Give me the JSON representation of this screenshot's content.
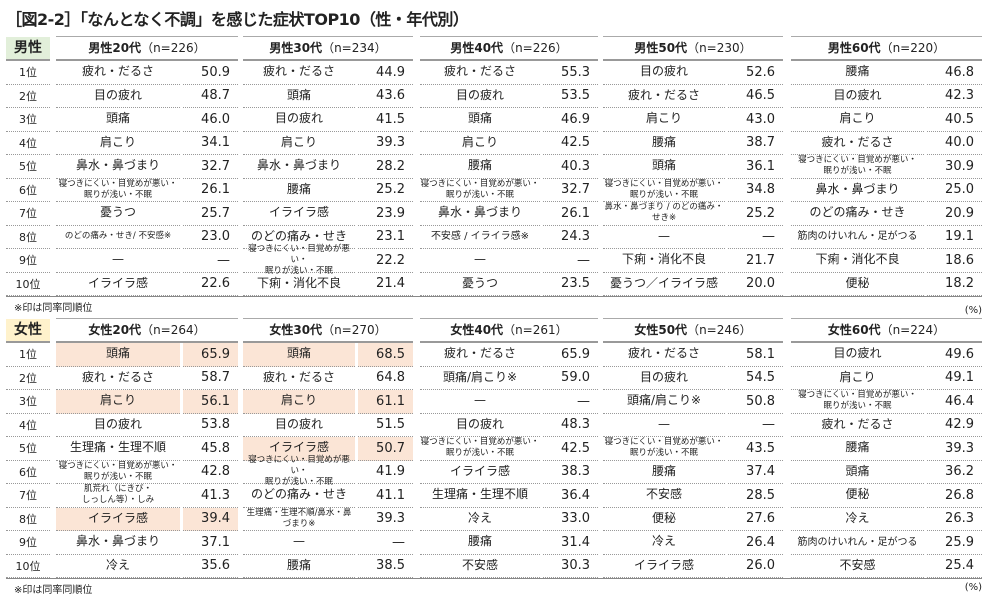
{
  "title": "［図2-2］「なんとなく不調」を感じた症状TOP10（性・年代別）",
  "ranks": [
    "1位",
    "2位",
    "3位",
    "4位",
    "5位",
    "6位",
    "7位",
    "8位",
    "9位",
    "10位"
  ],
  "note": "※印は同率同順位",
  "unit": "(%)",
  "colors": {
    "male_label_bg": "#e2efda",
    "female_label_bg": "#fff2cc",
    "highlight": "#fbe5d6"
  },
  "sections": [
    {
      "label": "男性",
      "groups": [
        {
          "title": "男性20代",
          "n": "（n=226）",
          "rows": [
            {
              "name": "疲れ・だるさ",
              "value": "50.9"
            },
            {
              "name": "目の疲れ",
              "value": "48.7"
            },
            {
              "name": "頭痛",
              "value": "46.0"
            },
            {
              "name": "肩こり",
              "value": "34.1"
            },
            {
              "name": "鼻水・鼻づまり",
              "value": "32.7"
            },
            {
              "name": "寝つきにくい・目覚めが悪い・\n眠りが浅い・不眠",
              "value": "26.1"
            },
            {
              "name": "憂うつ",
              "value": "25.7"
            },
            {
              "name": "のどの痛み・せき/ 不安感※",
              "value": "23.0"
            },
            {
              "name": "—",
              "value": "—"
            },
            {
              "name": "イライラ感",
              "value": "22.6"
            }
          ]
        },
        {
          "title": "男性30代",
          "n": "（n=234）",
          "rows": [
            {
              "name": "疲れ・だるさ",
              "value": "44.9"
            },
            {
              "name": "頭痛",
              "value": "43.6"
            },
            {
              "name": "目の疲れ",
              "value": "41.5"
            },
            {
              "name": "肩こり",
              "value": "39.3"
            },
            {
              "name": "鼻水・鼻づまり",
              "value": "28.2"
            },
            {
              "name": "腰痛",
              "value": "25.2"
            },
            {
              "name": "イライラ感",
              "value": "23.9"
            },
            {
              "name": "のどの痛み・せき",
              "value": "23.1"
            },
            {
              "name": "寝つきにくい・目覚めが悪い・\n眠りが浅い・不眠",
              "value": "22.2"
            },
            {
              "name": "下痢・消化不良",
              "value": "21.4"
            }
          ]
        },
        {
          "title": "男性40代",
          "n": "（n=226）",
          "rows": [
            {
              "name": "疲れ・だるさ",
              "value": "55.3"
            },
            {
              "name": "目の疲れ",
              "value": "53.5"
            },
            {
              "name": "頭痛",
              "value": "46.9"
            },
            {
              "name": "肩こり",
              "value": "42.5"
            },
            {
              "name": "腰痛",
              "value": "40.3"
            },
            {
              "name": "寝つきにくい・目覚めが悪い・\n眠りが浅い・不眠",
              "value": "32.7"
            },
            {
              "name": "鼻水・鼻づまり",
              "value": "26.1"
            },
            {
              "name": "不安感 / イライラ感※",
              "value": "24.3"
            },
            {
              "name": "—",
              "value": "—"
            },
            {
              "name": "憂うつ",
              "value": "23.5"
            }
          ]
        },
        {
          "title": "男性50代",
          "n": "（n=230）",
          "rows": [
            {
              "name": "目の疲れ",
              "value": "52.6"
            },
            {
              "name": "疲れ・だるさ",
              "value": "46.5"
            },
            {
              "name": "肩こり",
              "value": "43.0"
            },
            {
              "name": "腰痛",
              "value": "38.7"
            },
            {
              "name": "頭痛",
              "value": "36.1"
            },
            {
              "name": "寝つきにくい・目覚めが悪い・\n眠りが浅い・不眠",
              "value": "34.8"
            },
            {
              "name": "鼻水・鼻づまり / のどの痛み・せき※",
              "value": "25.2"
            },
            {
              "name": "—",
              "value": "—"
            },
            {
              "name": "下痢・消化不良",
              "value": "21.7"
            },
            {
              "name": "憂うつ／イライラ感",
              "value": "20.0"
            }
          ]
        },
        {
          "title": "男性60代",
          "n": "（n=220）",
          "rows": [
            {
              "name": "腰痛",
              "value": "46.8"
            },
            {
              "name": "目の疲れ",
              "value": "42.3"
            },
            {
              "name": "肩こり",
              "value": "40.5"
            },
            {
              "name": "疲れ・だるさ",
              "value": "40.0"
            },
            {
              "name": "寝つきにくい・目覚めが悪い・\n眠りが浅い・不眠",
              "value": "30.9"
            },
            {
              "name": "鼻水・鼻づまり",
              "value": "25.0"
            },
            {
              "name": "のどの痛み・せき",
              "value": "20.9"
            },
            {
              "name": "筋肉のけいれん・足がつる",
              "value": "19.1"
            },
            {
              "name": "下痢・消化不良",
              "value": "18.6"
            },
            {
              "name": "便秘",
              "value": "18.2"
            }
          ]
        }
      ]
    },
    {
      "label": "女性",
      "groups": [
        {
          "title": "女性20代",
          "n": "（n=264）",
          "rows": [
            {
              "name": "頭痛",
              "value": "65.9",
              "highlight": true
            },
            {
              "name": "疲れ・だるさ",
              "value": "58.7"
            },
            {
              "name": "肩こり",
              "value": "56.1",
              "highlight": true
            },
            {
              "name": "目の疲れ",
              "value": "53.8"
            },
            {
              "name": "生理痛・生理不順",
              "value": "45.8"
            },
            {
              "name": "寝つきにくい・目覚めが悪い・\n眠りが浅い・不眠",
              "value": "42.8"
            },
            {
              "name": "肌荒れ（にきび・\nしっしん等）・しみ",
              "value": "41.3"
            },
            {
              "name": "イライラ感",
              "value": "39.4",
              "highlight": true
            },
            {
              "name": "鼻水・鼻づまり",
              "value": "37.1"
            },
            {
              "name": "冷え",
              "value": "35.6"
            }
          ]
        },
        {
          "title": "女性30代",
          "n": "（n=270）",
          "rows": [
            {
              "name": "頭痛",
              "value": "68.5",
              "highlight": true
            },
            {
              "name": "疲れ・だるさ",
              "value": "64.8"
            },
            {
              "name": "肩こり",
              "value": "61.1",
              "highlight": true
            },
            {
              "name": "目の疲れ",
              "value": "51.5"
            },
            {
              "name": "イライラ感",
              "value": "50.7",
              "highlight": true
            },
            {
              "name": "寝つきにくい・目覚めが悪い・\n眠りが浅い・不眠",
              "value": "41.9"
            },
            {
              "name": "のどの痛み・せき",
              "value": "41.1"
            },
            {
              "name": "生理痛・生理不順/鼻水・鼻づまり※",
              "value": "39.3"
            },
            {
              "name": "—",
              "value": "—"
            },
            {
              "name": "腰痛",
              "value": "38.5"
            }
          ]
        },
        {
          "title": "女性40代",
          "n": "（n=261）",
          "rows": [
            {
              "name": "疲れ・だるさ",
              "value": "65.9"
            },
            {
              "name": "頭痛/肩こり※",
              "value": "59.0"
            },
            {
              "name": "—",
              "value": "—"
            },
            {
              "name": "目の疲れ",
              "value": "48.3"
            },
            {
              "name": "寝つきにくい・目覚めが悪い・\n眠りが浅い・不眠",
              "value": "42.5"
            },
            {
              "name": "イライラ感",
              "value": "38.3"
            },
            {
              "name": "生理痛・生理不順",
              "value": "36.4"
            },
            {
              "name": "冷え",
              "value": "33.0"
            },
            {
              "name": "腰痛",
              "value": "31.4"
            },
            {
              "name": "不安感",
              "value": "30.3"
            }
          ]
        },
        {
          "title": "女性50代",
          "n": "（n=246）",
          "rows": [
            {
              "name": "疲れ・だるさ",
              "value": "58.1"
            },
            {
              "name": "目の疲れ",
              "value": "54.5"
            },
            {
              "name": "頭痛/肩こり※",
              "value": "50.8"
            },
            {
              "name": "—",
              "value": "—"
            },
            {
              "name": "寝つきにくい・目覚めが悪い・\n眠りが浅い・不眠",
              "value": "43.5"
            },
            {
              "name": "腰痛",
              "value": "37.4"
            },
            {
              "name": "不安感",
              "value": "28.5"
            },
            {
              "name": "便秘",
              "value": "27.6"
            },
            {
              "name": "冷え",
              "value": "26.4"
            },
            {
              "name": "イライラ感",
              "value": "26.0"
            }
          ]
        },
        {
          "title": "女性60代",
          "n": "（n=224）",
          "rows": [
            {
              "name": "目の疲れ",
              "value": "49.6"
            },
            {
              "name": "肩こり",
              "value": "49.1"
            },
            {
              "name": "寝つきにくい・目覚めが悪い・\n眠りが浅い・不眠",
              "value": "46.4"
            },
            {
              "name": "疲れ・だるさ",
              "value": "42.9"
            },
            {
              "name": "腰痛",
              "value": "39.3"
            },
            {
              "name": "頭痛",
              "value": "36.2"
            },
            {
              "name": "便秘",
              "value": "26.8"
            },
            {
              "name": "冷え",
              "value": "26.3"
            },
            {
              "name": "筋肉のけいれん・足がつる",
              "value": "25.9"
            },
            {
              "name": "不安感",
              "value": "25.4"
            }
          ]
        }
      ]
    }
  ]
}
